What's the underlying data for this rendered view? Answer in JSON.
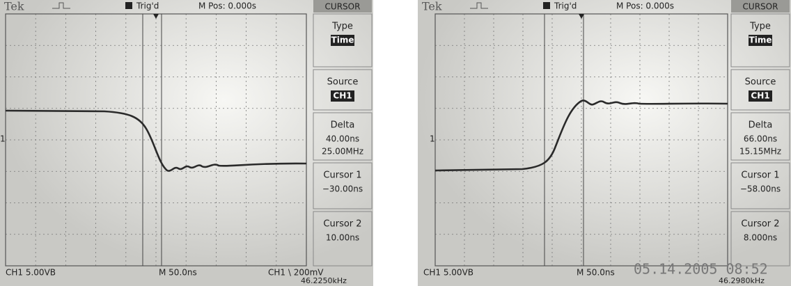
{
  "screens": [
    {
      "header": {
        "brand": "Tek",
        "trigger": "Trig'd",
        "position": "M Pos: 0.000s",
        "menu_title": "CURSOR"
      },
      "menu": [
        {
          "label": "Type",
          "value": "Time"
        },
        {
          "label": "Source",
          "value": "CH1"
        },
        {
          "label": "Delta",
          "value": "40.00ns",
          "value2": "25.00MHz"
        },
        {
          "label": "Cursor 1",
          "value": "−30.00ns"
        },
        {
          "label": "Cursor 2",
          "value": "10.00ns"
        }
      ],
      "marker": "1",
      "footer": {
        "channel": "CH1 5.00VB",
        "timebase": "M 50.0ns",
        "trigger": "CH1 \\ 200mV",
        "frequency": "46.2250kHz"
      }
    },
    {
      "header": {
        "brand": "Tek",
        "trigger": "Trig'd",
        "position": "M Pos: 0.000s",
        "menu_title": "CURSOR"
      },
      "menu": [
        {
          "label": "Type",
          "value": "Time"
        },
        {
          "label": "Source",
          "value": "CH1"
        },
        {
          "label": "Delta",
          "value": "66.00ns",
          "value2": "15.15MHz"
        },
        {
          "label": "Cursor 1",
          "value": "−58.00ns"
        },
        {
          "label": "Cursor 2",
          "value": "8.000ns"
        }
      ],
      "marker": "1",
      "footer": {
        "channel": "CH1 5.00VB",
        "timebase": "M 50.0ns",
        "frequency": "46.2980kHz",
        "timestamp": "05.14.2005 08:52"
      }
    }
  ]
}
